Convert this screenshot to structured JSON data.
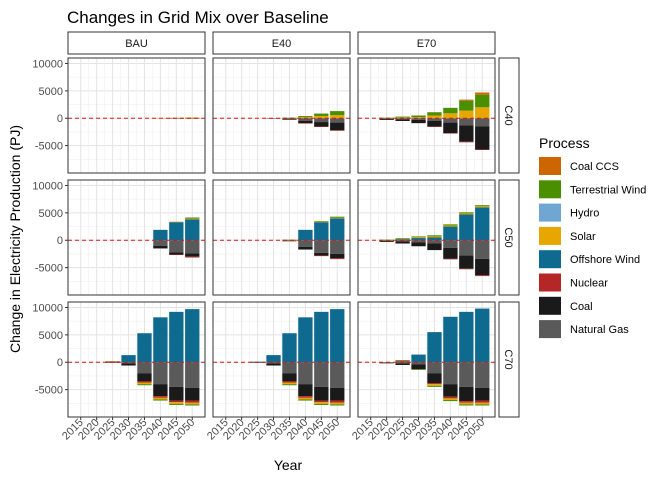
{
  "chart_data": {
    "type": "bar",
    "stacked": true,
    "faceted": true,
    "title": "Changes in Grid Mix over Baseline",
    "xlabel": "Year",
    "ylabel": "Change in Electricity Production (PJ)",
    "ylim": [
      -10000,
      11000
    ],
    "yticks": [
      -5000,
      0,
      5000,
      10000
    ],
    "grid": true,
    "legend_position": "right",
    "legend_title": "Process",
    "baseline_line": {
      "value": 0,
      "color": "#d7191c",
      "style": "dashed"
    },
    "columns": [
      "BAU",
      "E40",
      "E70"
    ],
    "rows": [
      "C40",
      "C50",
      "C70"
    ],
    "categories": [
      "2015",
      "2020",
      "2025",
      "2030",
      "2035",
      "2040",
      "2045",
      "2050"
    ],
    "legend": [
      {
        "name": "Coal CCS",
        "color": "#cc6600"
      },
      {
        "name": "Terrestrial Wind",
        "color": "#4a8f00"
      },
      {
        "name": "Hydro",
        "color": "#6fa6d2"
      },
      {
        "name": "Solar",
        "color": "#e8a600"
      },
      {
        "name": "Offshore Wind",
        "color": "#0e6a8e"
      },
      {
        "name": "Nuclear",
        "color": "#b52626"
      },
      {
        "name": "Coal",
        "color": "#1a1a1a"
      },
      {
        "name": "Natural Gas",
        "color": "#5a5a5a"
      }
    ],
    "panels": [
      {
        "row": "C40",
        "col": "BAU",
        "series": {
          "Natural Gas": [
            0,
            0,
            0,
            0,
            0,
            0,
            -50,
            -100
          ],
          "Coal": [
            0,
            0,
            0,
            0,
            0,
            0,
            0,
            0
          ],
          "Solar": [
            0,
            0,
            0,
            0,
            0,
            50,
            100,
            150
          ],
          "Offshore Wind": [
            0,
            0,
            0,
            0,
            0,
            0,
            0,
            0
          ],
          "Terrestrial Wind": [
            0,
            0,
            0,
            0,
            0,
            0,
            0,
            0
          ]
        }
      },
      {
        "row": "C40",
        "col": "E40",
        "series": {
          "Natural Gas": [
            0,
            0,
            0,
            -50,
            -200,
            -500,
            -700,
            -800
          ],
          "Coal": [
            0,
            0,
            0,
            0,
            -100,
            -400,
            -800,
            -1400
          ],
          "Nuclear": [
            0,
            0,
            0,
            0,
            0,
            -50,
            -100,
            -100
          ],
          "Offshore Wind": [
            0,
            0,
            0,
            0,
            0,
            0,
            0,
            0
          ],
          "Solar": [
            0,
            0,
            0,
            0,
            50,
            200,
            400,
            550
          ],
          "Terrestrial Wind": [
            0,
            0,
            0,
            0,
            50,
            200,
            450,
            750
          ]
        }
      },
      {
        "row": "C40",
        "col": "E70",
        "series": {
          "Natural Gas": [
            0,
            -100,
            -200,
            -300,
            -500,
            -800,
            -1300,
            -1500
          ],
          "Coal": [
            0,
            -200,
            -300,
            -600,
            -1000,
            -1900,
            -3000,
            -4200
          ],
          "Nuclear": [
            0,
            0,
            0,
            0,
            -50,
            -100,
            -100,
            -100
          ],
          "Offshore Wind": [
            0,
            0,
            0,
            0,
            0,
            0,
            0,
            0
          ],
          "Solar": [
            0,
            50,
            150,
            200,
            500,
            900,
            1400,
            2000
          ],
          "Terrestrial Wind": [
            0,
            50,
            150,
            300,
            600,
            1000,
            1800,
            2300
          ],
          "Coal CCS": [
            0,
            0,
            0,
            0,
            0,
            0,
            200,
            400
          ]
        }
      },
      {
        "row": "C50",
        "col": "BAU",
        "series": {
          "Natural Gas": [
            0,
            0,
            0,
            0,
            0,
            -1000,
            -2200,
            -2400
          ],
          "Coal": [
            0,
            0,
            0,
            0,
            0,
            -500,
            -400,
            -600
          ],
          "Nuclear": [
            0,
            0,
            0,
            0,
            0,
            0,
            -100,
            -150
          ],
          "Offshore Wind": [
            0,
            0,
            0,
            0,
            0,
            1900,
            3300,
            3800
          ],
          "Solar": [
            0,
            0,
            0,
            0,
            0,
            0,
            100,
            150
          ],
          "Terrestrial Wind": [
            0,
            0,
            0,
            0,
            0,
            0,
            0,
            200
          ]
        }
      },
      {
        "row": "C50",
        "col": "E40",
        "series": {
          "Natural Gas": [
            0,
            0,
            0,
            0,
            -100,
            -1200,
            -2300,
            -2500
          ],
          "Coal": [
            0,
            0,
            0,
            0,
            -50,
            -500,
            -500,
            -800
          ],
          "Nuclear": [
            0,
            0,
            0,
            0,
            0,
            0,
            -100,
            -150
          ],
          "Offshore Wind": [
            0,
            0,
            0,
            0,
            0,
            1900,
            3300,
            4000
          ],
          "Solar": [
            0,
            0,
            0,
            0,
            50,
            0,
            100,
            100
          ],
          "Terrestrial Wind": [
            0,
            0,
            0,
            0,
            50,
            0,
            100,
            200
          ]
        }
      },
      {
        "row": "C50",
        "col": "E70",
        "series": {
          "Natural Gas": [
            0,
            -100,
            -200,
            -400,
            -600,
            -1400,
            -2800,
            -3400
          ],
          "Coal": [
            0,
            -200,
            -400,
            -700,
            -1200,
            -2000,
            -2400,
            -3000
          ],
          "Nuclear": [
            0,
            0,
            0,
            0,
            0,
            -50,
            -100,
            -150
          ],
          "Offshore Wind": [
            0,
            0,
            200,
            400,
            500,
            2500,
            4700,
            6000
          ],
          "Solar": [
            0,
            50,
            100,
            150,
            200,
            200,
            200,
            200
          ],
          "Terrestrial Wind": [
            0,
            50,
            100,
            150,
            200,
            200,
            200,
            200
          ]
        }
      },
      {
        "row": "C70",
        "col": "BAU",
        "series": {
          "Natural Gas": [
            0,
            0,
            0,
            -200,
            -2000,
            -4000,
            -4500,
            -4700
          ],
          "Coal": [
            0,
            0,
            -100,
            -400,
            -1500,
            -2200,
            -2500,
            -2300
          ],
          "Nuclear": [
            0,
            0,
            0,
            0,
            -200,
            -300,
            -300,
            -400
          ],
          "Solar": [
            0,
            0,
            0,
            0,
            -300,
            -300,
            -300,
            -300
          ],
          "Terrestrial Wind": [
            0,
            0,
            0,
            0,
            -200,
            -200,
            -200,
            -200
          ],
          "Offshore Wind": [
            0,
            0,
            100,
            1300,
            5300,
            8200,
            9200,
            9700
          ],
          "Coal CCS": [
            0,
            0,
            100,
            0,
            0,
            0,
            0,
            0
          ]
        }
      },
      {
        "row": "C70",
        "col": "E40",
        "series": {
          "Natural Gas": [
            0,
            0,
            0,
            -200,
            -2000,
            -4000,
            -4500,
            -4700
          ],
          "Coal": [
            0,
            0,
            -100,
            -400,
            -1500,
            -2200,
            -2500,
            -2300
          ],
          "Nuclear": [
            0,
            0,
            0,
            0,
            -200,
            -300,
            -300,
            -400
          ],
          "Solar": [
            0,
            0,
            0,
            0,
            -300,
            -300,
            -300,
            -300
          ],
          "Terrestrial Wind": [
            0,
            0,
            0,
            0,
            -200,
            -200,
            -200,
            -200
          ],
          "Offshore Wind": [
            0,
            0,
            100,
            1300,
            5300,
            8200,
            9200,
            9700
          ],
          "Coal CCS": [
            0,
            0,
            0,
            0,
            0,
            0,
            0,
            0
          ]
        }
      },
      {
        "row": "C70",
        "col": "E70",
        "series": {
          "Natural Gas": [
            0,
            -100,
            -200,
            -400,
            -2000,
            -4000,
            -4500,
            -4700
          ],
          "Coal": [
            0,
            -100,
            -300,
            -900,
            -1800,
            -2300,
            -2600,
            -2300
          ],
          "Nuclear": [
            0,
            0,
            0,
            0,
            -200,
            -300,
            -300,
            -400
          ],
          "Solar": [
            0,
            0,
            0,
            0,
            -300,
            -300,
            -300,
            -300
          ],
          "Terrestrial Wind": [
            0,
            0,
            0,
            -50,
            -200,
            -200,
            -200,
            -200
          ],
          "Offshore Wind": [
            0,
            0,
            200,
            1400,
            5500,
            8300,
            9200,
            9800
          ],
          "Coal CCS": [
            0,
            0,
            200,
            0,
            0,
            0,
            0,
            0
          ]
        }
      }
    ]
  }
}
